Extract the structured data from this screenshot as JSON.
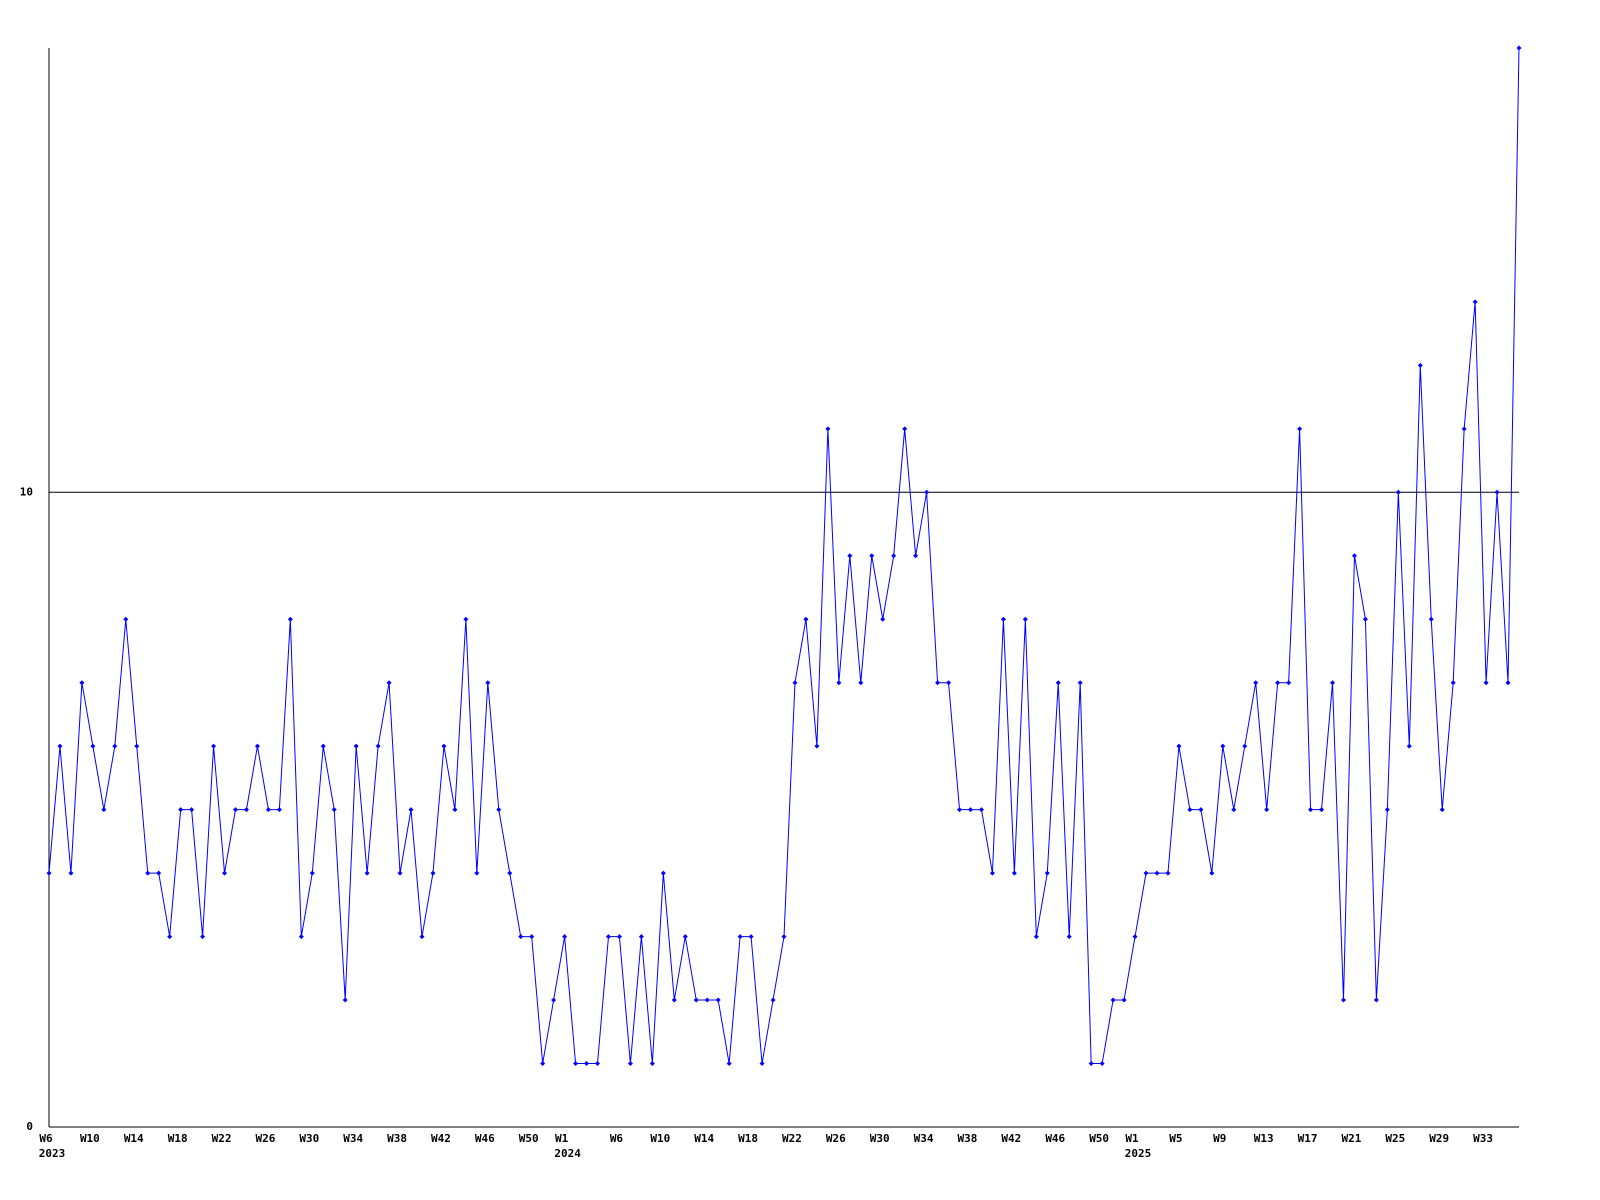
{
  "chart_data": {
    "type": "line",
    "categories": [
      "W6",
      null,
      null,
      null,
      "W10",
      null,
      null,
      null,
      "W14",
      null,
      null,
      null,
      "W18",
      null,
      null,
      null,
      "W22",
      null,
      null,
      null,
      "W26",
      null,
      null,
      null,
      "W30",
      null,
      null,
      null,
      "W34",
      null,
      null,
      null,
      "W38",
      null,
      null,
      null,
      "W42",
      null,
      null,
      null,
      "W46",
      null,
      null,
      null,
      "W50",
      null,
      null,
      "W1",
      null,
      null,
      null,
      null,
      "W6",
      null,
      null,
      null,
      "W10",
      null,
      null,
      null,
      "W14",
      null,
      null,
      null,
      "W18",
      null,
      null,
      null,
      "W22",
      null,
      null,
      null,
      "W26",
      null,
      null,
      null,
      "W30",
      null,
      null,
      null,
      "W34",
      null,
      null,
      null,
      "W38",
      null,
      null,
      null,
      "W42",
      null,
      null,
      null,
      "W46",
      null,
      null,
      null,
      "W50",
      null,
      null,
      "W1",
      null,
      null,
      null,
      "W5",
      null,
      null,
      null,
      "W9",
      null,
      null,
      null,
      "W13",
      null,
      null,
      null,
      "W17",
      null,
      null,
      null,
      "W21",
      null,
      null,
      null,
      "W25",
      null,
      null,
      null,
      "W29",
      null,
      null,
      null,
      "W33",
      null,
      null,
      null
    ],
    "category_years": [
      "2023",
      null,
      null,
      null,
      null,
      null,
      null,
      null,
      null,
      null,
      null,
      null,
      null,
      null,
      null,
      null,
      null,
      null,
      null,
      null,
      null,
      null,
      null,
      null,
      null,
      null,
      null,
      null,
      null,
      null,
      null,
      null,
      null,
      null,
      null,
      null,
      null,
      null,
      null,
      null,
      null,
      null,
      null,
      null,
      null,
      null,
      null,
      "2024",
      null,
      null,
      null,
      null,
      null,
      null,
      null,
      null,
      null,
      null,
      null,
      null,
      null,
      null,
      null,
      null,
      null,
      null,
      null,
      null,
      null,
      null,
      null,
      null,
      null,
      null,
      null,
      null,
      null,
      null,
      null,
      null,
      null,
      null,
      null,
      null,
      null,
      null,
      null,
      null,
      null,
      null,
      null,
      null,
      null,
      null,
      null,
      null,
      null,
      null,
      null,
      "2025",
      null,
      null,
      null,
      null,
      null,
      null,
      null,
      null,
      null,
      null,
      null,
      null,
      null,
      null,
      null,
      null,
      null,
      null,
      null,
      null,
      null,
      null,
      null,
      null,
      null,
      null,
      null,
      null,
      null,
      null,
      null,
      null,
      null,
      null,
      null
    ],
    "series": [
      {
        "color": "#0000ff",
        "values": [
          4,
          6,
          4,
          7,
          6,
          5,
          6,
          8,
          6,
          4,
          4,
          3,
          5,
          5,
          3,
          6,
          4,
          5,
          5,
          6,
          5,
          5,
          8,
          3,
          4,
          6,
          5,
          2,
          6,
          4,
          6,
          7,
          4,
          5,
          3,
          4,
          6,
          5,
          8,
          4,
          7,
          5,
          4,
          3,
          3,
          1,
          2,
          3,
          1,
          1,
          1,
          3,
          3,
          1,
          3,
          1,
          4,
          2,
          3,
          2,
          2,
          2,
          1,
          3,
          3,
          1,
          2,
          3,
          7,
          8,
          6,
          11,
          7,
          9,
          7,
          9,
          8,
          9,
          11,
          9,
          10,
          7,
          7,
          5,
          5,
          5,
          4,
          8,
          4,
          8,
          3,
          4,
          7,
          3,
          7,
          1,
          1,
          2,
          2,
          3,
          4,
          4,
          4,
          6,
          5,
          5,
          4,
          6,
          5,
          6,
          7,
          5,
          7,
          7,
          11,
          5,
          5,
          7,
          2,
          9,
          8,
          2,
          5,
          10,
          6,
          12,
          8,
          5,
          7,
          11,
          13,
          7,
          10,
          7,
          17
        ]
      }
    ],
    "ylim": [
      0,
      17
    ],
    "yticks": [
      0,
      10
    ],
    "grid": true
  }
}
